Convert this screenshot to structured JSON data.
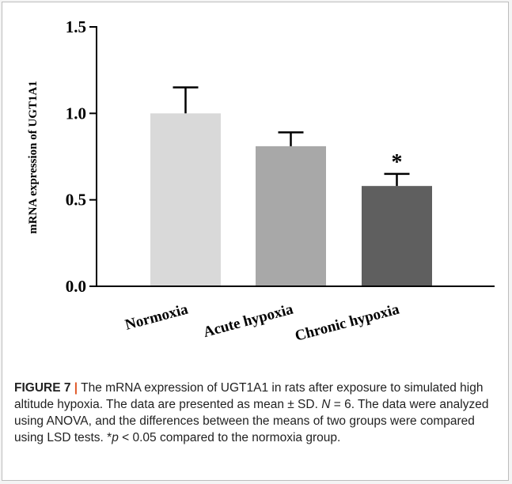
{
  "chart_data": {
    "type": "bar",
    "categories": [
      "Normoxia",
      "Acute hypoxia",
      "Chronic hypoxia"
    ],
    "values": [
      1.0,
      0.81,
      0.58
    ],
    "errors": [
      0.15,
      0.08,
      0.07
    ],
    "significance": [
      "",
      "",
      "*"
    ],
    "colors": [
      "#d9d9d9",
      "#a8a8a8",
      "#5f5f5f"
    ],
    "ylabel": "mRNA expression of UGT1A1",
    "ylim": [
      0.0,
      1.5
    ],
    "yticks": [
      "0.0",
      "0.5",
      "1.0",
      "1.5"
    ],
    "ytick_values": [
      0.0,
      0.5,
      1.0,
      1.5
    ],
    "grid": false
  },
  "caption": {
    "label": "FIGURE 7",
    "separator": "|",
    "line1": " The mRNA expression of UGT1A1 in rats after exposure to simulated high altitude hypoxia. The data are presented as mean ± SD. ",
    "n_symbol": "N",
    "n_value": " = 6. The data were analyzed using ANOVA, and the differences between the means of two groups were compared using LSD tests. *",
    "p_symbol": "p",
    "p_value": " < 0.05 compared to the normoxia group."
  }
}
